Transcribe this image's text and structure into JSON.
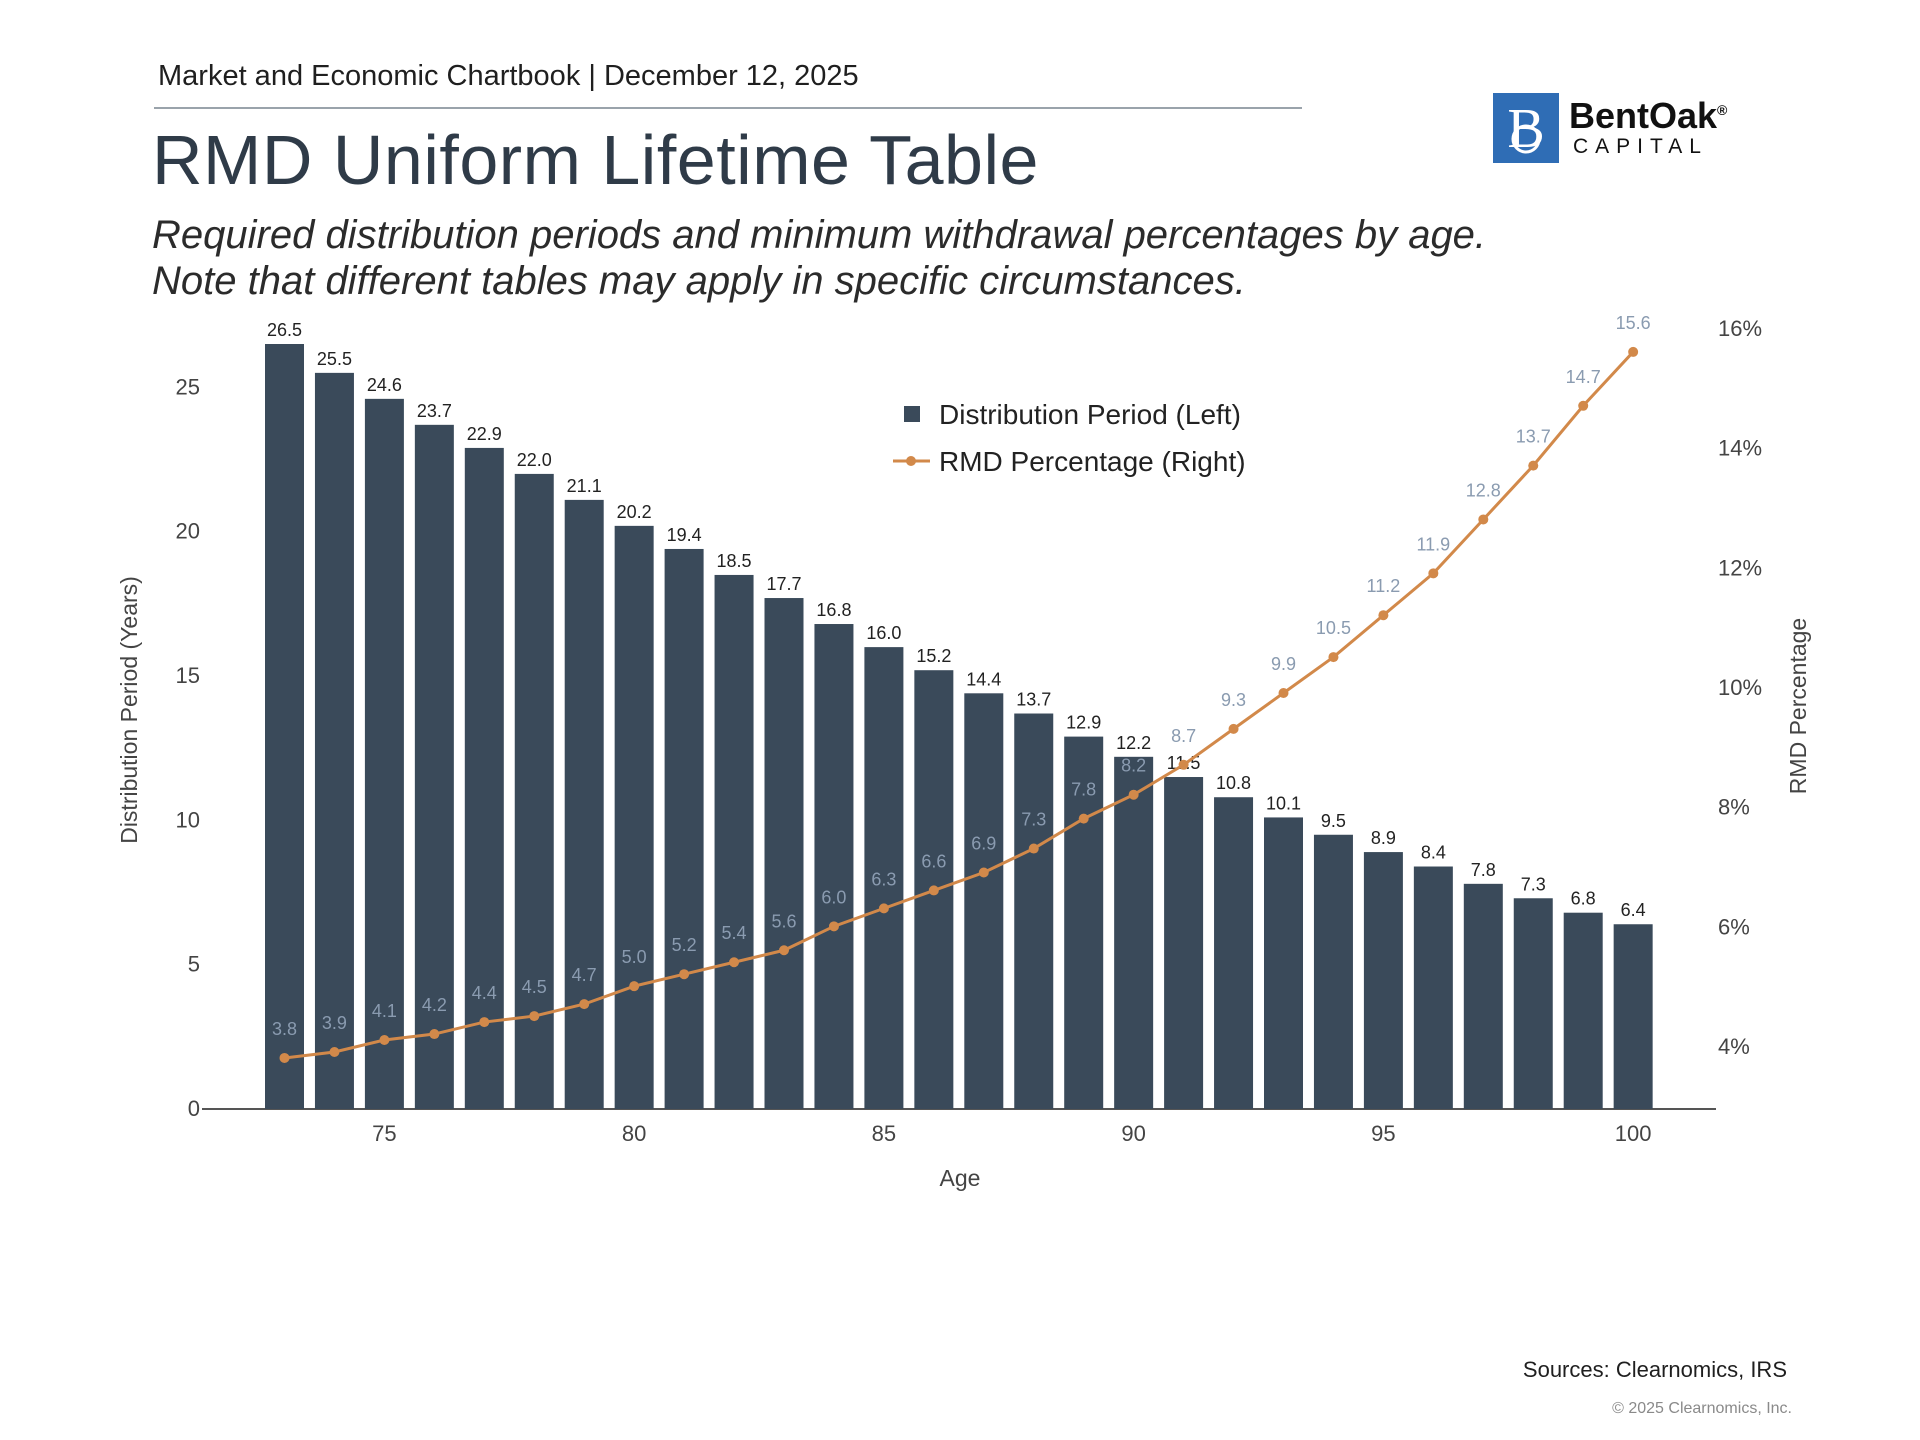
{
  "header": {
    "chartbook": "Market and Economic Chartbook | December 12, 2025",
    "title": "RMD Uniform Lifetime Table",
    "subtitle_line1": "Required distribution periods and minimum withdrawal percentages by age.",
    "subtitle_line2": "Note that different tables may apply in specific circumstances."
  },
  "logo": {
    "name": "BentOak",
    "registered": "®",
    "sub": "CAPITAL",
    "mark": "B"
  },
  "footer": {
    "sources": "Sources: Clearnomics, IRS",
    "copyright": "© 2025 Clearnomics, Inc."
  },
  "chart_data": {
    "type": "bar",
    "xlabel": "Age",
    "ylabel": "Distribution Period (Years)",
    "ylabel_right": "RMD Percentage",
    "x": [
      73,
      74,
      75,
      76,
      77,
      78,
      79,
      80,
      81,
      82,
      83,
      84,
      85,
      86,
      87,
      88,
      89,
      90,
      91,
      92,
      93,
      94,
      95,
      96,
      97,
      98,
      99,
      100
    ],
    "x_ticks": [
      "75",
      "80",
      "85",
      "90",
      "95",
      "100"
    ],
    "y_ticks": [
      "0",
      "5",
      "10",
      "15",
      "20",
      "25"
    ],
    "y2_ticks": [
      "4%",
      "6%",
      "8%",
      "10%",
      "12%",
      "14%",
      "16%"
    ],
    "ylim": [
      0,
      26.5
    ],
    "y2lim": [
      3.0,
      16.0
    ],
    "series": [
      {
        "name": "Distribution Period (Left)",
        "type": "bar",
        "axis": "left",
        "color": "#3a4a5a",
        "values": [
          26.5,
          25.5,
          24.6,
          23.7,
          22.9,
          22.0,
          21.1,
          20.2,
          19.4,
          18.5,
          17.7,
          16.8,
          16.0,
          15.2,
          14.4,
          13.7,
          12.9,
          12.2,
          11.5,
          10.8,
          10.1,
          9.5,
          8.9,
          8.4,
          7.8,
          7.3,
          6.8,
          6.4
        ]
      },
      {
        "name": "RMD Percentage (Right)",
        "type": "line",
        "axis": "right",
        "color": "#d2894a",
        "values": [
          3.8,
          3.9,
          4.1,
          4.2,
          4.4,
          4.5,
          4.7,
          5.0,
          5.2,
          5.4,
          5.6,
          6.0,
          6.3,
          6.6,
          6.9,
          7.3,
          7.8,
          8.2,
          8.7,
          9.3,
          9.9,
          10.5,
          11.2,
          11.9,
          12.8,
          13.7,
          14.7,
          15.6
        ]
      }
    ],
    "legend_position": "top-center"
  }
}
